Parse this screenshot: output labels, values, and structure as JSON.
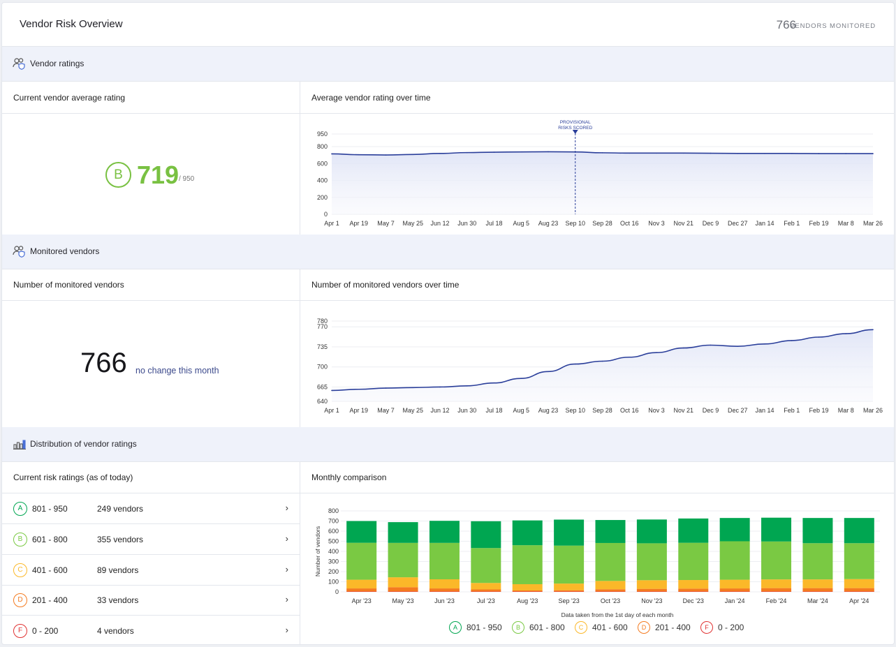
{
  "header": {
    "title": "Vendor Risk Overview",
    "count": "766",
    "count_label": "VENDORS MONITORED"
  },
  "sections": {
    "ratings": {
      "label": "Vendor ratings",
      "icon": "users-shield-icon"
    },
    "monitored": {
      "label": "Monitored vendors",
      "icon": "users-shield-icon"
    },
    "distribution": {
      "label": "Distribution of vendor ratings",
      "icon": "bar-chart-icon"
    }
  },
  "ratings": {
    "left_title": "Current vendor average rating",
    "right_title": "Average vendor rating over time",
    "grade": "B",
    "score": "719",
    "out_of": "/ 950"
  },
  "monitored": {
    "left_title": "Number of monitored vendors",
    "right_title": "Number of monitored vendors over time",
    "count": "766",
    "note": "no change this month"
  },
  "distribution": {
    "left_title": "Current risk ratings (as of today)",
    "right_title": "Monthly comparison",
    "rows": [
      {
        "grade": "A",
        "range": "801 - 950",
        "count": "249 vendors"
      },
      {
        "grade": "B",
        "range": "601 - 800",
        "count": "355 vendors"
      },
      {
        "grade": "C",
        "range": "401 - 600",
        "count": "89 vendors"
      },
      {
        "grade": "D",
        "range": "201 - 400",
        "count": "33 vendors"
      },
      {
        "grade": "F",
        "range": "0 - 200",
        "count": "4 vendors"
      }
    ]
  },
  "colors": {
    "A": "#00a651",
    "B": "#7ac943",
    "C": "#fbb829",
    "D": "#f47b20",
    "F": "#e03131",
    "line": "#2a3e9a"
  },
  "chart_data": [
    {
      "type": "area",
      "x": [
        "Apr 1",
        "Apr 19",
        "May 7",
        "May 25",
        "Jun 12",
        "Jun 30",
        "Jul 18",
        "Aug 5",
        "Aug 23",
        "Sep 10",
        "Sep 28",
        "Oct 16",
        "Nov 3",
        "Nov 21",
        "Dec 9",
        "Dec 27",
        "Jan 14",
        "Feb 1",
        "Feb 19",
        "Mar 8",
        "Mar 26"
      ],
      "values": [
        715,
        705,
        702,
        708,
        720,
        730,
        735,
        738,
        740,
        738,
        728,
        724,
        724,
        724,
        722,
        720,
        720,
        720,
        718,
        718,
        718
      ],
      "yticks": [
        0,
        200,
        400,
        600,
        800,
        950
      ],
      "ylim": [
        0,
        950
      ],
      "annotation": {
        "x": "Sep 10",
        "label": [
          "PROVISIONAL",
          "RISKS SCORED"
        ]
      }
    },
    {
      "type": "area",
      "x": [
        "Apr 1",
        "Apr 19",
        "May 7",
        "May 25",
        "Jun 12",
        "Jun 30",
        "Jul 18",
        "Aug 5",
        "Aug 23",
        "Sep 10",
        "Sep 28",
        "Oct 16",
        "Nov 3",
        "Nov 21",
        "Dec 9",
        "Dec 27",
        "Jan 14",
        "Feb 1",
        "Feb 19",
        "Mar 8",
        "Mar 26"
      ],
      "values": [
        659,
        661,
        663,
        664,
        665,
        667,
        672,
        680,
        692,
        705,
        710,
        717,
        725,
        733,
        738,
        736,
        740,
        746,
        752,
        758,
        765
      ],
      "yticks": [
        640,
        665,
        700,
        735,
        770,
        780
      ],
      "ylim": [
        640,
        780
      ]
    },
    {
      "type": "bar",
      "stacked": true,
      "categories": [
        "Apr '23",
        "May '23",
        "Jun '23",
        "Jul '23",
        "Aug '23",
        "Sep '23",
        "Oct '23",
        "Nov '23",
        "Dec '23",
        "Jan '24",
        "Feb '24",
        "Mar '24",
        "Apr '24"
      ],
      "series": [
        {
          "name": "0 - 200",
          "values": [
            4,
            4,
            4,
            4,
            4,
            4,
            4,
            4,
            4,
            4,
            4,
            4,
            4
          ]
        },
        {
          "name": "201 - 400",
          "values": [
            30,
            42,
            30,
            20,
            10,
            12,
            22,
            26,
            28,
            30,
            33,
            33,
            33
          ]
        },
        {
          "name": "401 - 600",
          "values": [
            86,
            98,
            90,
            64,
            62,
            66,
            82,
            85,
            85,
            86,
            86,
            86,
            89
          ]
        },
        {
          "name": "601 - 800",
          "values": [
            365,
            340,
            360,
            345,
            385,
            375,
            375,
            365,
            368,
            380,
            375,
            358,
            355
          ]
        },
        {
          "name": "801 - 950",
          "values": [
            215,
            205,
            218,
            265,
            245,
            257,
            227,
            235,
            240,
            230,
            235,
            249,
            249
          ]
        }
      ],
      "ylabel": "Number of vendors",
      "xlabel": "Data taken from the 1st day of each month",
      "yticks": [
        0,
        100,
        200,
        300,
        400,
        500,
        600,
        700,
        800
      ],
      "ylim": [
        0,
        800
      ]
    }
  ]
}
